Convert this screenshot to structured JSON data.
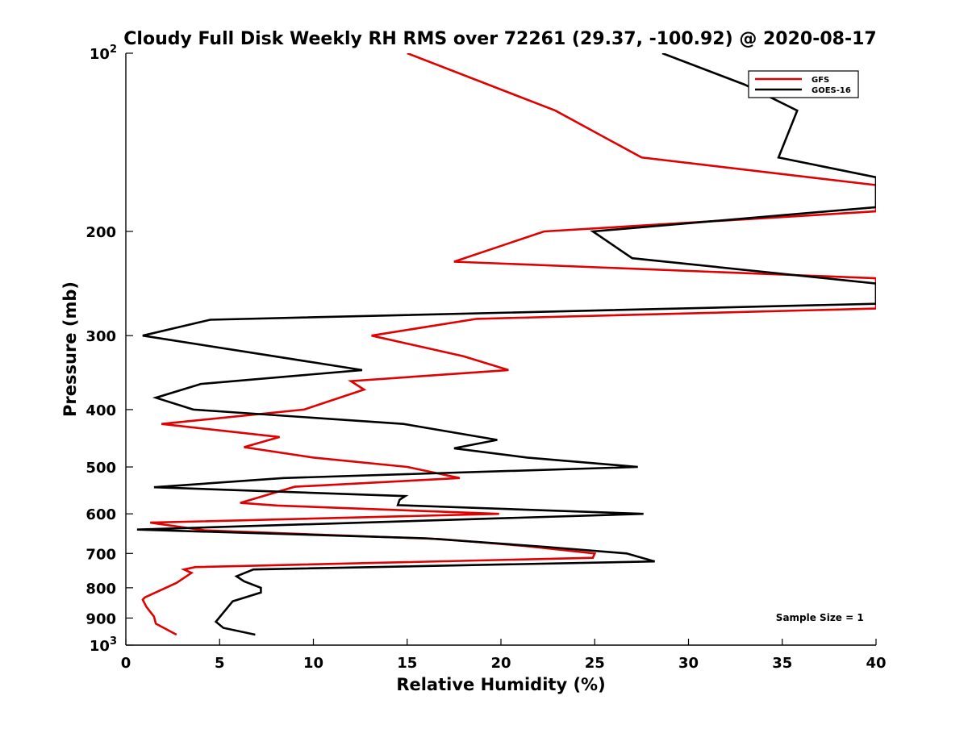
{
  "chart_data": {
    "type": "line",
    "title": "Cloudy Full Disk Weekly RH RMS over 72261 (29.37, -100.92) @ 2020-08-17",
    "xlabel": "Relative Humidity (%)",
    "ylabel": "Pressure (mb)",
    "xlim": [
      0,
      40
    ],
    "ylim": [
      100,
      1000
    ],
    "y_scale": "log",
    "y_reversed": true,
    "grid": false,
    "legend_position": "top-right",
    "x_ticks": [
      0,
      5,
      10,
      15,
      20,
      25,
      30,
      35,
      40
    ],
    "y_ticks": [
      {
        "value": 100,
        "base": "10",
        "exp": "2"
      },
      {
        "value": 200,
        "label": "200"
      },
      {
        "value": 300,
        "label": "300"
      },
      {
        "value": 400,
        "label": "400"
      },
      {
        "value": 500,
        "label": "500"
      },
      {
        "value": 600,
        "label": "600"
      },
      {
        "value": 700,
        "label": "700"
      },
      {
        "value": 800,
        "label": "800"
      },
      {
        "value": 900,
        "label": "900"
      },
      {
        "value": 1000,
        "base": "10",
        "exp": "3"
      }
    ],
    "series": [
      {
        "name": "GFS",
        "color": "#e00000",
        "points": [
          [
            15.0,
            100
          ],
          [
            22.9,
            125
          ],
          [
            27.5,
            150
          ],
          [
            40.0,
            167
          ],
          [
            40.0,
            185
          ],
          [
            22.3,
            200
          ],
          [
            17.5,
            225
          ],
          [
            40.0,
            240
          ],
          [
            40.0,
            270
          ],
          [
            18.7,
            281
          ],
          [
            13.1,
            300
          ],
          [
            18.0,
            325
          ],
          [
            20.4,
            343
          ],
          [
            12.0,
            358
          ],
          [
            12.7,
            370
          ],
          [
            9.5,
            400
          ],
          [
            1.9,
            423
          ],
          [
            8.2,
            445
          ],
          [
            6.3,
            463
          ],
          [
            10.0,
            482
          ],
          [
            15.0,
            500
          ],
          [
            17.8,
            522
          ],
          [
            9.0,
            540
          ],
          [
            6.1,
            575
          ],
          [
            8.1,
            581
          ],
          [
            19.9,
            600
          ],
          [
            1.3,
            621
          ],
          [
            4.2,
            640
          ],
          [
            16.8,
            662
          ],
          [
            21.3,
            680
          ],
          [
            25.0,
            700
          ],
          [
            24.9,
            712
          ],
          [
            3.7,
            738
          ],
          [
            3.1,
            745
          ],
          [
            3.5,
            755
          ],
          [
            2.7,
            785
          ],
          [
            1.0,
            831
          ],
          [
            0.9,
            838
          ],
          [
            1.1,
            862
          ],
          [
            1.5,
            895
          ],
          [
            1.6,
            920
          ],
          [
            2.7,
            960
          ]
        ]
      },
      {
        "name": "GOES-16",
        "color": "#000000",
        "points": [
          [
            28.6,
            100
          ],
          [
            33.0,
            113
          ],
          [
            35.8,
            125
          ],
          [
            34.8,
            150
          ],
          [
            40.0,
            162
          ],
          [
            40.0,
            182
          ],
          [
            24.9,
            200
          ],
          [
            27.0,
            222
          ],
          [
            40.0,
            245
          ],
          [
            40.0,
            265
          ],
          [
            4.5,
            282
          ],
          [
            0.9,
            300
          ],
          [
            7.1,
            322
          ],
          [
            12.6,
            343
          ],
          [
            4.0,
            362
          ],
          [
            1.6,
            382
          ],
          [
            3.6,
            400
          ],
          [
            14.8,
            423
          ],
          [
            19.8,
            450
          ],
          [
            17.5,
            465
          ],
          [
            21.4,
            482
          ],
          [
            27.3,
            500
          ],
          [
            8.4,
            522
          ],
          [
            1.5,
            541
          ],
          [
            14.9,
            560
          ],
          [
            14.6,
            568
          ],
          [
            14.5,
            580
          ],
          [
            27.6,
            600
          ],
          [
            0.6,
            638
          ],
          [
            16.0,
            660
          ],
          [
            22.3,
            682
          ],
          [
            26.7,
            700
          ],
          [
            28.2,
            722
          ],
          [
            6.8,
            745
          ],
          [
            5.9,
            765
          ],
          [
            6.3,
            780
          ],
          [
            7.2,
            800
          ],
          [
            7.2,
            815
          ],
          [
            5.7,
            843
          ],
          [
            4.8,
            913
          ],
          [
            5.2,
            935
          ],
          [
            6.9,
            960
          ]
        ]
      }
    ],
    "annotations": [
      {
        "text": "Sample Size = 1",
        "x": 37,
        "y": 910
      }
    ]
  }
}
